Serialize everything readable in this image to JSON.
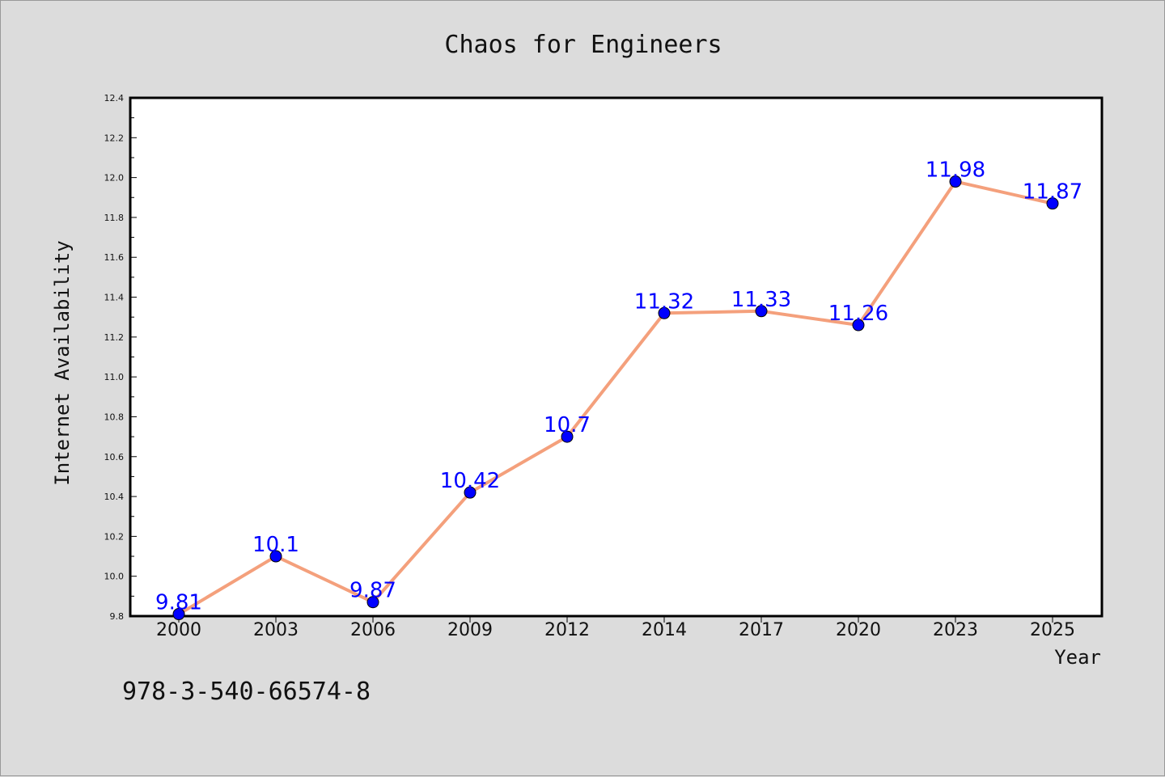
{
  "chart_data": {
    "type": "line",
    "title": "Chaos for Engineers",
    "xlabel": "Year",
    "ylabel": "Internet Availability",
    "categories": [
      "2000",
      "2003",
      "2006",
      "2009",
      "2012",
      "2014",
      "2017",
      "2020",
      "2023",
      "2025"
    ],
    "series": [
      {
        "values": [
          9.81,
          10.1,
          9.87,
          10.42,
          10.7,
          11.32,
          11.33,
          11.26,
          11.98,
          11.87
        ],
        "data_labels": [
          "9.81",
          "10.1",
          "9.87",
          "10.42",
          "10.7",
          "11.32",
          "11.33",
          "11.26",
          "11.98",
          "11.87"
        ],
        "line_color": "#f4a07c",
        "marker_color": "#0000ff"
      }
    ],
    "ylim": [
      9.8,
      12.4
    ],
    "yticks": [
      "9.8",
      "10.0",
      "10.2",
      "10.4",
      "10.6",
      "10.8",
      "11.0",
      "11.2",
      "11.4",
      "11.6",
      "11.8",
      "12.0",
      "12.2",
      "12.4"
    ],
    "grid": false,
    "legend": "none"
  },
  "footnote": "978-3-540-66574-8",
  "colors": {
    "background": "#dcdcdc",
    "plot_background": "#ffffff",
    "data_label": "#0000ff"
  }
}
